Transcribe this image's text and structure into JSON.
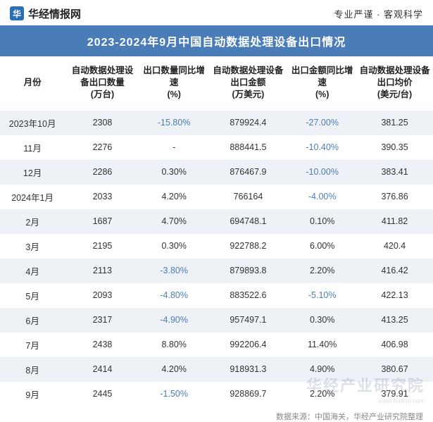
{
  "header": {
    "brand_char": "华",
    "brand_text": "华经情报网",
    "slogan": "专业严谨 · 客观科学"
  },
  "title": "2023-2024年9月中国自动数据处理设备出口情况",
  "columns": {
    "month": "月份",
    "qty": "自动数据处理设备出口数量\n(万台)",
    "qty_growth": "出口数量同比增速\n(%)",
    "amount": "自动数据处理设备出口金额\n(万美元)",
    "amt_growth": "出口金额同比增速\n(%)",
    "avg_price": "自动数据处理设备出口均价\n(美元/台)"
  },
  "rows": [
    {
      "month": "2023年10月",
      "qty": "2308",
      "qg": "-15.80%",
      "amt": "879924.4",
      "ag": "-27.00%",
      "avg": "381.25"
    },
    {
      "month": "11月",
      "qty": "2276",
      "qg": "-",
      "amt": "888441.5",
      "ag": "-10.40%",
      "avg": "390.35"
    },
    {
      "month": "12月",
      "qty": "2286",
      "qg": "0.30%",
      "amt": "876467.9",
      "ag": "-10.00%",
      "avg": "383.41"
    },
    {
      "month": "2024年1月",
      "qty": "2033",
      "qg": "4.20%",
      "amt": "766164",
      "ag": "-4.00%",
      "avg": "376.86"
    },
    {
      "month": "2月",
      "qty": "1687",
      "qg": "4.70%",
      "amt": "694748.1",
      "ag": "0.10%",
      "avg": "411.82"
    },
    {
      "month": "3月",
      "qty": "2195",
      "qg": "0.30%",
      "amt": "922788.2",
      "ag": "6.00%",
      "avg": "420.4"
    },
    {
      "month": "4月",
      "qty": "2113",
      "qg": "-3.80%",
      "amt": "879893.8",
      "ag": "2.20%",
      "avg": "416.42"
    },
    {
      "month": "5月",
      "qty": "2093",
      "qg": "-4.80%",
      "amt": "883522.6",
      "ag": "-5.10%",
      "avg": "422.13"
    },
    {
      "month": "6月",
      "qty": "2317",
      "qg": "-4.90%",
      "amt": "957497.1",
      "ag": "0.30%",
      "avg": "413.25"
    },
    {
      "month": "7月",
      "qty": "2438",
      "qg": "8.80%",
      "amt": "992206.4",
      "ag": "11.40%",
      "avg": "406.98"
    },
    {
      "month": "8月",
      "qty": "2414",
      "qg": "4.20%",
      "amt": "918931.3",
      "ag": "4.90%",
      "avg": "380.67"
    },
    {
      "month": "9月",
      "qty": "2445",
      "qg": "-1.50%",
      "amt": "928869.7",
      "ag": "2.20%",
      "avg": "379.91"
    }
  ],
  "footer": "数据来源：中国海关，华经产业研究院整理",
  "watermark": "华经产业研究院",
  "watermark_sub": "www.huaon.com",
  "styling": {
    "title_bg": "#4a7db8",
    "title_color": "#ffffff",
    "row_odd_bg": "#eef1f5",
    "row_even_bg": "#ffffff",
    "neg_color": "#4a7db8",
    "pos_color": "#333333",
    "header_fontsize": 12.5,
    "title_fontsize": 16
  }
}
